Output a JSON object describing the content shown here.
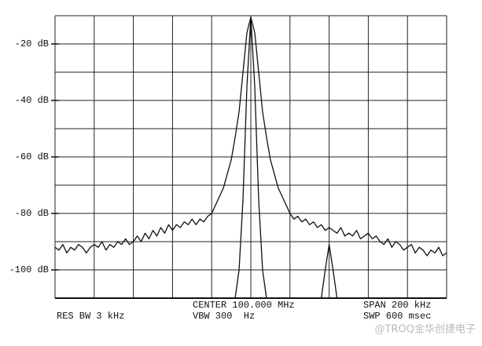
{
  "chart_data": {
    "type": "line",
    "x": [
      99.9,
      99.902,
      99.904,
      99.906,
      99.908,
      99.91,
      99.912,
      99.914,
      99.916,
      99.918,
      99.92,
      99.922,
      99.924,
      99.926,
      99.928,
      99.93,
      99.932,
      99.934,
      99.936,
      99.938,
      99.94,
      99.942,
      99.944,
      99.946,
      99.948,
      99.95,
      99.952,
      99.954,
      99.956,
      99.958,
      99.96,
      99.962,
      99.964,
      99.966,
      99.968,
      99.97,
      99.972,
      99.974,
      99.976,
      99.978,
      99.98,
      99.982,
      99.984,
      99.986,
      99.988,
      99.99,
      99.992,
      99.994,
      99.996,
      99.998,
      100.0,
      100.002,
      100.004,
      100.006,
      100.008,
      100.01,
      100.012,
      100.014,
      100.016,
      100.018,
      100.02,
      100.022,
      100.024,
      100.026,
      100.028,
      100.03,
      100.032,
      100.034,
      100.036,
      100.038,
      100.04,
      100.042,
      100.044,
      100.046,
      100.048,
      100.05,
      100.052,
      100.054,
      100.056,
      100.058,
      100.06,
      100.062,
      100.064,
      100.066,
      100.068,
      100.07,
      100.072,
      100.074,
      100.076,
      100.078,
      100.08,
      100.082,
      100.084,
      100.086,
      100.088,
      100.09,
      100.092,
      100.094,
      100.096,
      100.098,
      100.1
    ],
    "series": [
      {
        "color": "#111111",
        "values": [
          -92,
          -93,
          -91,
          -94,
          -92,
          -93,
          -91,
          -92,
          -94,
          -92,
          -91,
          -92,
          -90,
          -93,
          -91,
          -92,
          -90,
          -91,
          -89,
          -91,
          -90,
          -88,
          -90,
          -87,
          -89,
          -86,
          -88,
          -85,
          -87,
          -84,
          -86,
          -84,
          -85,
          -83,
          -84,
          -82,
          -84,
          -82,
          -83,
          -81,
          -80,
          -77,
          -74,
          -71,
          -66,
          -61,
          -53,
          -44,
          -30,
          -16,
          -10.5,
          -16,
          -30,
          -44,
          -53,
          -61,
          -66,
          -71,
          -74,
          -77,
          -80,
          -82,
          -81,
          -83,
          -82,
          -84,
          -83,
          -85,
          -84,
          -86,
          -85,
          -86,
          -87,
          -85,
          -88,
          -87,
          -88,
          -86,
          -89,
          -88,
          -87,
          -89,
          -88,
          -90,
          -91,
          -89,
          -92,
          -90,
          -91,
          -93,
          -92,
          -91,
          -94,
          -92,
          -93,
          -95,
          -93,
          -94,
          -92,
          -95,
          -94
        ]
      },
      {
        "color": "#111111",
        "values": [
          null,
          null,
          null,
          null,
          null,
          null,
          null,
          null,
          null,
          null,
          null,
          null,
          null,
          null,
          null,
          null,
          null,
          null,
          null,
          null,
          null,
          null,
          null,
          null,
          null,
          null,
          null,
          null,
          null,
          null,
          null,
          null,
          null,
          null,
          null,
          null,
          null,
          null,
          null,
          null,
          null,
          null,
          null,
          null,
          null,
          null,
          -110,
          -100,
          -75,
          -35,
          -10.5,
          -35,
          -75,
          -100,
          -110,
          null,
          null,
          null,
          null,
          null,
          null,
          null,
          null,
          null,
          null,
          null,
          null,
          null,
          -110,
          -100,
          -91,
          -100,
          -110,
          null,
          null,
          null,
          null,
          null,
          null,
          null,
          null,
          null,
          null,
          null,
          null,
          null,
          null,
          null,
          null,
          null,
          null,
          null,
          null,
          null,
          null,
          null,
          null,
          null,
          null,
          null,
          null
        ]
      }
    ],
    "xlim": [
      99.9,
      100.1
    ],
    "ylim": [
      -110,
      -10
    ],
    "yticks": [
      {
        "value": -20,
        "label": "-20 dB"
      },
      {
        "value": -40,
        "label": "-40 dB"
      },
      {
        "value": -60,
        "label": "-60 dB"
      },
      {
        "value": -80,
        "label": "-80 dB"
      },
      {
        "value": -100,
        "label": "-100 dB"
      }
    ],
    "grid": true,
    "annotations": [
      "CENTER 100.000 MHz",
      "RES BW 3 kHz",
      "VBW 300  Hz",
      "SPAN 200 kHz",
      "SWP 600 msec"
    ],
    "watermark": "@TROQ金华创捷电子"
  }
}
